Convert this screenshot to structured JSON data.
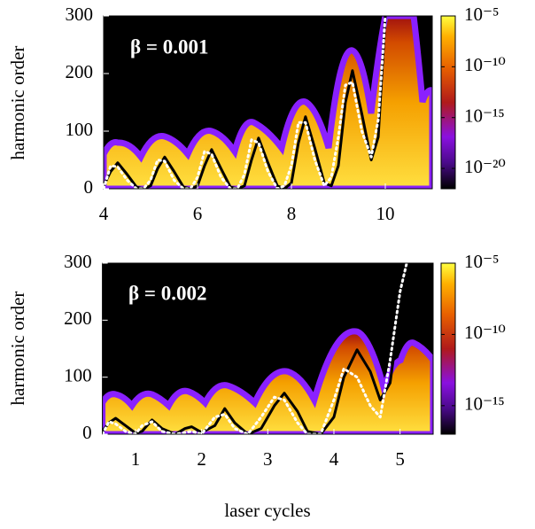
{
  "chart_data": [
    {
      "type": "line",
      "annotation": "β = 0.001",
      "ylabel": "harmonic order",
      "xlim": [
        4,
        11
      ],
      "ylim": [
        0,
        300
      ],
      "xticks": [
        4,
        6,
        8,
        10
      ],
      "yticks": [
        0,
        100,
        200,
        300
      ],
      "x": [
        4.0,
        4.15,
        4.3,
        4.5,
        4.7,
        4.85,
        5.0,
        5.15,
        5.3,
        5.5,
        5.7,
        5.85,
        6.0,
        6.15,
        6.3,
        6.5,
        6.7,
        6.85,
        7.0,
        7.15,
        7.3,
        7.5,
        7.7,
        7.85,
        8.0,
        8.15,
        8.3,
        8.5,
        8.7,
        8.85,
        9.0,
        9.15,
        9.3,
        9.5,
        9.7,
        9.85,
        10.0
      ],
      "series": [
        {
          "color": "#000000",
          "style": "solid",
          "values": [
            5,
            30,
            45,
            25,
            3,
            0,
            5,
            35,
            55,
            30,
            3,
            0,
            5,
            40,
            68,
            35,
            3,
            0,
            5,
            50,
            88,
            45,
            5,
            0,
            10,
            80,
            125,
            70,
            10,
            5,
            40,
            150,
            205,
            130,
            50,
            90,
            300
          ]
        },
        {
          "color": "#ffffff",
          "style": "dotted",
          "values": [
            0,
            40,
            38,
            15,
            0,
            0,
            15,
            50,
            48,
            15,
            0,
            0,
            20,
            65,
            60,
            20,
            0,
            0,
            25,
            85,
            80,
            30,
            0,
            5,
            40,
            115,
            115,
            50,
            5,
            20,
            90,
            180,
            185,
            100,
            55,
            120,
            300
          ]
        }
      ],
      "colorbar": {
        "scale": "log",
        "lim": [
          1e-22,
          1e-05
        ],
        "ticks": [
          {
            "value": 1e-05,
            "label": "10⁻⁵"
          },
          {
            "value": 1e-10,
            "label": "10⁻¹⁰"
          },
          {
            "value": 1e-15,
            "label": "10⁻¹⁵"
          },
          {
            "value": 1e-20,
            "label": "10⁻²⁰"
          }
        ]
      }
    },
    {
      "type": "line",
      "annotation": "β = 0.002",
      "ylabel": "harmonic order",
      "xlabel": "laser cycles",
      "xlim": [
        0.5,
        5.5
      ],
      "ylim": [
        0,
        300
      ],
      "xticks": [
        1,
        2,
        3,
        4,
        5
      ],
      "yticks": [
        0,
        100,
        200,
        300
      ],
      "x": [
        0.5,
        0.6,
        0.7,
        0.85,
        1.0,
        1.1,
        1.25,
        1.4,
        1.6,
        1.75,
        1.85,
        2.0,
        2.2,
        2.35,
        2.5,
        2.7,
        2.9,
        3.1,
        3.25,
        3.45,
        3.6,
        3.8,
        4.0,
        4.15,
        4.35,
        4.55,
        4.7,
        4.85,
        5.0,
        5.1
      ],
      "series": [
        {
          "color": "#000000",
          "style": "solid",
          "values": [
            5,
            20,
            28,
            15,
            2,
            5,
            25,
            10,
            0,
            10,
            13,
            3,
            15,
            45,
            20,
            0,
            10,
            50,
            72,
            40,
            5,
            0,
            30,
            100,
            148,
            110,
            60,
            90,
            220,
            300
          ]
        },
        {
          "color": "#ffffff",
          "style": "dotted",
          "values": [
            0,
            22,
            18,
            5,
            0,
            15,
            22,
            5,
            0,
            3,
            5,
            0,
            30,
            35,
            10,
            0,
            30,
            65,
            60,
            20,
            0,
            0,
            60,
            115,
            100,
            50,
            30,
            130,
            250,
            300
          ]
        }
      ],
      "colorbar": {
        "scale": "log",
        "lim": [
          1e-17,
          1e-05
        ],
        "ticks": [
          {
            "value": 1e-05,
            "label": "10⁻⁵"
          },
          {
            "value": 1e-10,
            "label": "10⁻¹⁰"
          },
          {
            "value": 1e-15,
            "label": "10⁻¹⁵"
          }
        ]
      }
    }
  ]
}
